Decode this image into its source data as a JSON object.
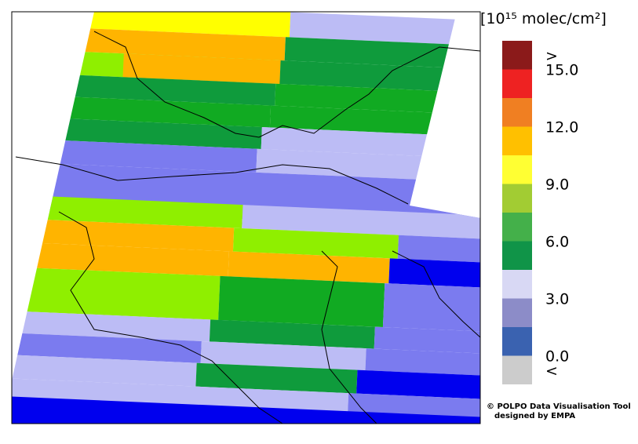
{
  "colorbar": {
    "title": "[10¹⁵ molec/cm²]",
    "labels": [
      ">",
      "15.0",
      "12.0",
      "9.0",
      "6.0",
      "3.0",
      "0.0",
      "<"
    ],
    "colors": [
      "#8b1a1a",
      "#ee2222",
      "#f07f22",
      "#ffc000",
      "#ffff33",
      "#a2cc33",
      "#44b04a",
      "#109448",
      "#d8d8f4",
      "#8c8cc8",
      "#3a62b0",
      "#cccccc"
    ]
  },
  "credit": {
    "line1": "© POLPO Data Visualisation Tool",
    "line2": "designed by EMPA"
  }
}
